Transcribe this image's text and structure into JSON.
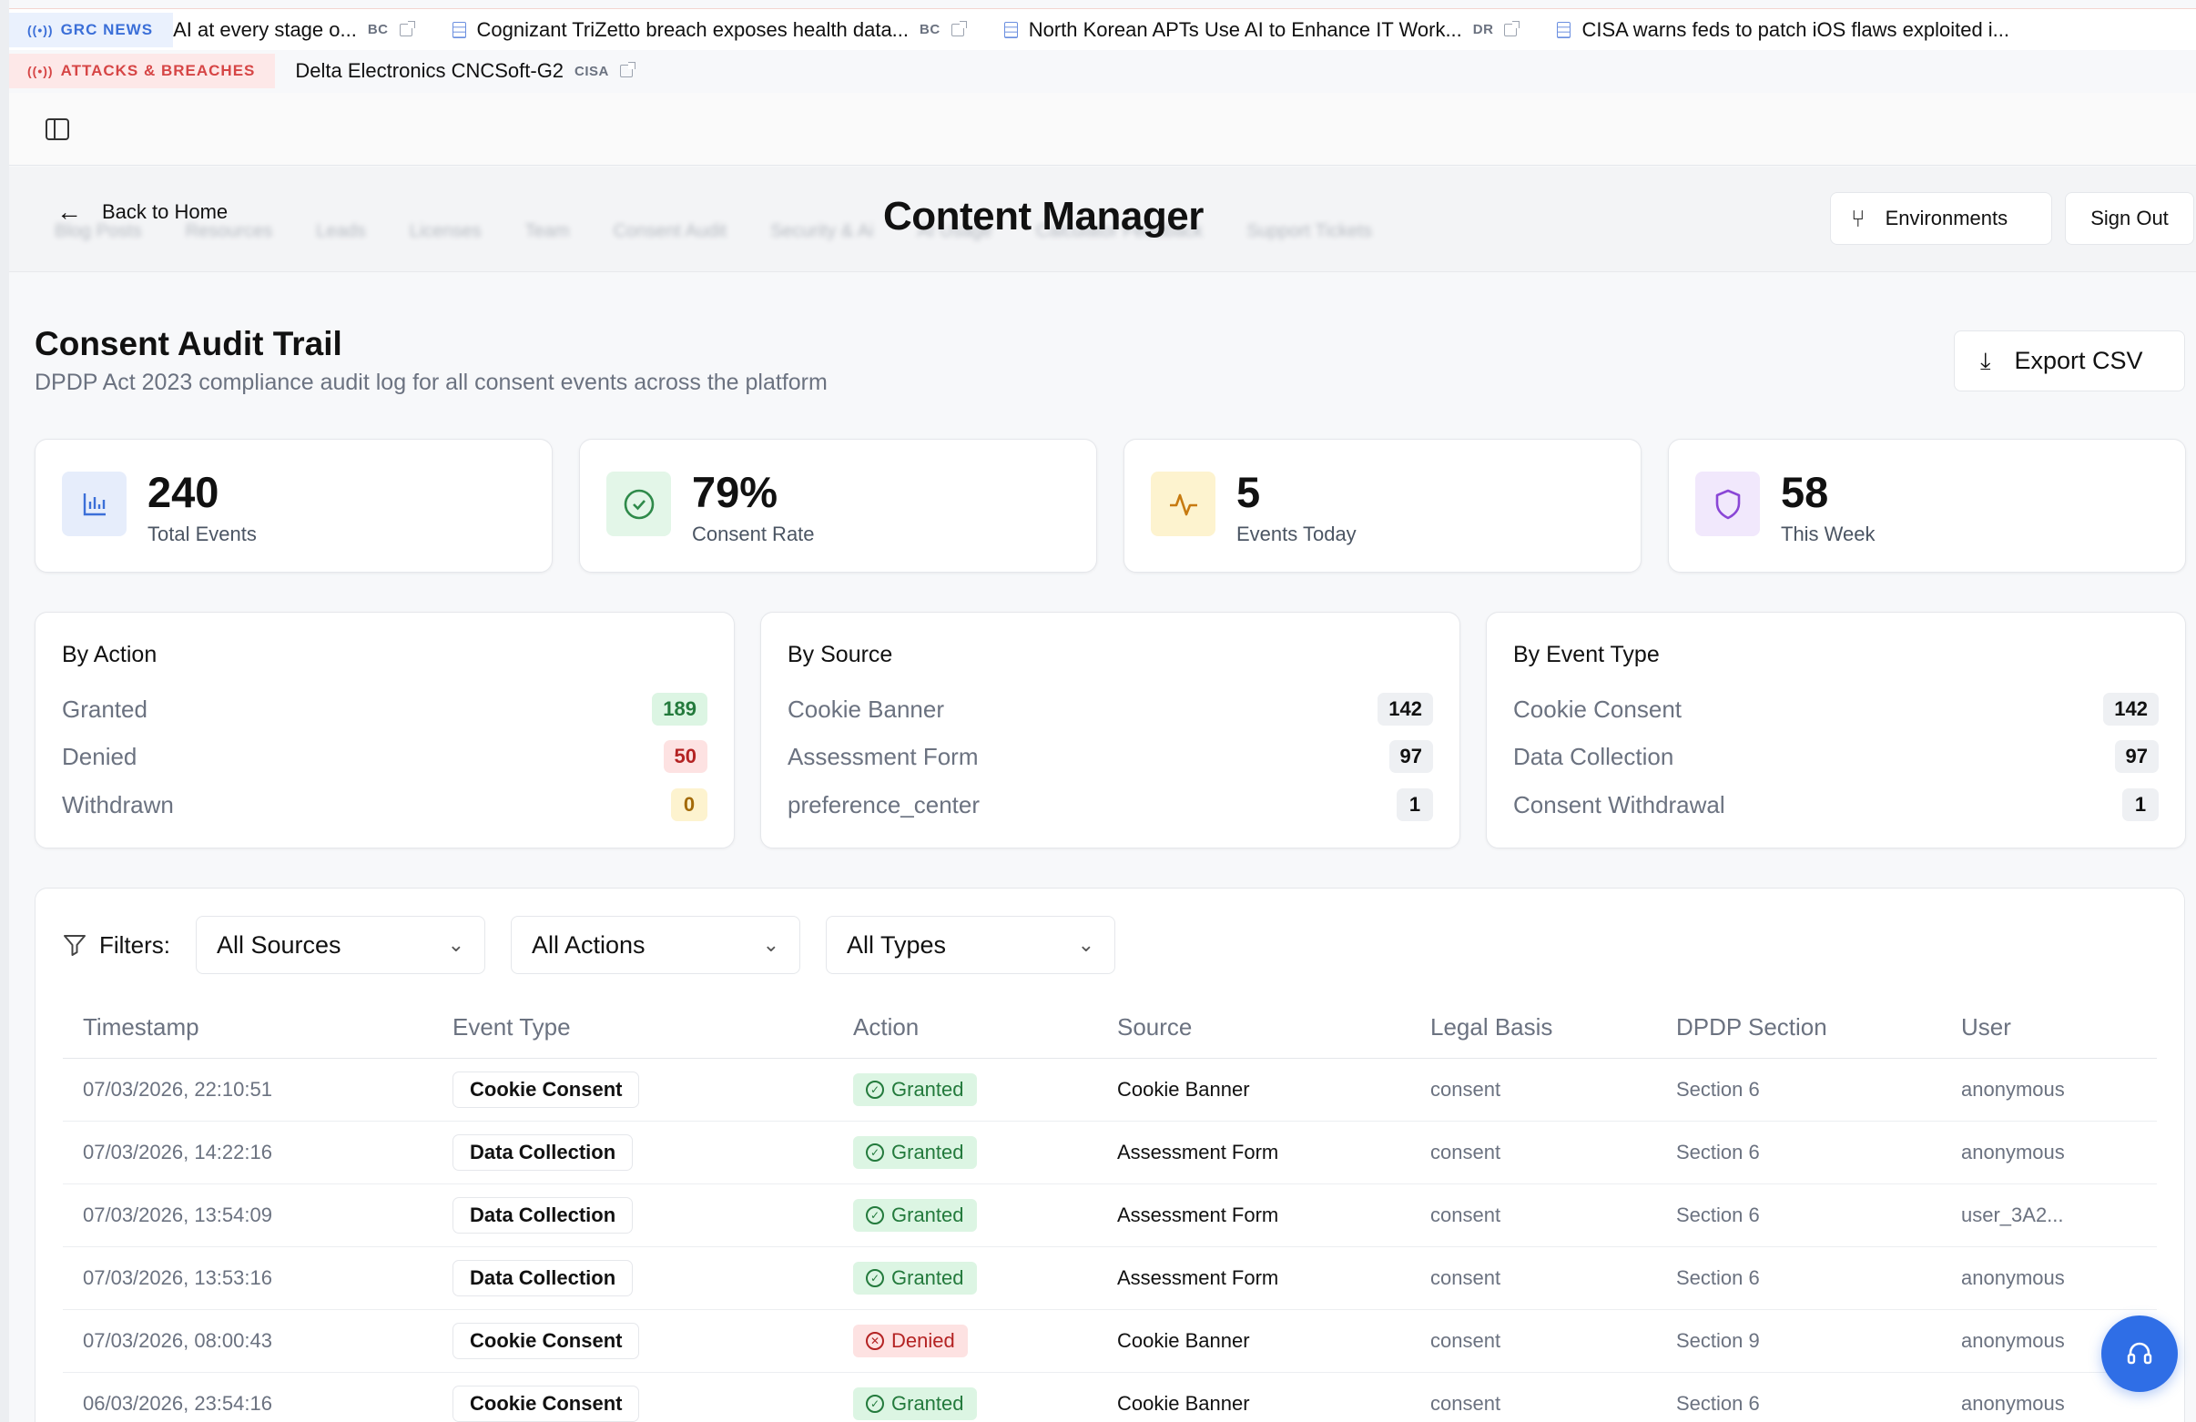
{
  "ticker": {
    "news_tag": "GRC NEWS",
    "news_items": [
      {
        "title": "AI at every stage o...",
        "source": "BC"
      },
      {
        "title": "Cognizant TriZetto breach exposes health data...",
        "source": "BC"
      },
      {
        "title": "North Korean APTs Use AI to Enhance IT Work...",
        "source": "DR"
      },
      {
        "title": "CISA warns feds to patch iOS flaws exploited i...",
        "source": ""
      }
    ],
    "attacks_tag": "ATTACKS & BREACHES",
    "attack_items": [
      {
        "title": "Delta Electronics CNCSoft-G2",
        "source": "CISA"
      }
    ]
  },
  "header": {
    "back_label": "Back to Home",
    "title": "Content Manager",
    "environments_label": "Environments",
    "signout_label": "Sign Out",
    "blurred_nav": [
      "Blog Posts",
      "Resources",
      "Leads",
      "Licenses",
      "Team",
      "Consent Audit",
      "Security & Ai",
      "AI Usage",
      "Calculator Feedback",
      "Support Tickets"
    ]
  },
  "section": {
    "title": "Consent Audit Trail",
    "subtitle": "DPDP Act 2023 compliance audit log for all consent events across the platform",
    "export_label": "Export CSV"
  },
  "stats": [
    {
      "value": "240",
      "label": "Total Events",
      "icon": "bar-chart-icon",
      "bg": "#e6edfb",
      "fg": "#3b6fd8"
    },
    {
      "value": "79%",
      "label": "Consent Rate",
      "icon": "check-circle-icon",
      "bg": "#e3f6e8",
      "fg": "#2f8a4a"
    },
    {
      "value": "5",
      "label": "Events Today",
      "icon": "activity-icon",
      "bg": "#fdf3cf",
      "fg": "#c77a10"
    },
    {
      "value": "58",
      "label": "This Week",
      "icon": "shield-icon",
      "bg": "#f1e8fc",
      "fg": "#8a46d6"
    }
  ],
  "breakdowns": [
    {
      "title": "By Action",
      "rows": [
        {
          "label": "Granted",
          "count": "189",
          "bg": "#dcf5e3",
          "fg": "#237a3c"
        },
        {
          "label": "Denied",
          "count": "50",
          "bg": "#fde2e2",
          "fg": "#b42323"
        },
        {
          "label": "Withdrawn",
          "count": "0",
          "bg": "#fdf3cf",
          "fg": "#a36a08"
        }
      ]
    },
    {
      "title": "By Source",
      "rows": [
        {
          "label": "Cookie Banner",
          "count": "142"
        },
        {
          "label": "Assessment Form",
          "count": "97"
        },
        {
          "label": "preference_center",
          "count": "1"
        }
      ]
    },
    {
      "title": "By Event Type",
      "rows": [
        {
          "label": "Cookie Consent",
          "count": "142"
        },
        {
          "label": "Data Collection",
          "count": "97"
        },
        {
          "label": "Consent Withdrawal",
          "count": "1"
        }
      ]
    }
  ],
  "filters": {
    "label": "Filters:",
    "source_selected": "All Sources",
    "action_selected": "All Actions",
    "type_selected": "All Types"
  },
  "table": {
    "columns": [
      "Timestamp",
      "Event Type",
      "Action",
      "Source",
      "Legal Basis",
      "DPDP Section",
      "User"
    ],
    "rows": [
      {
        "timestamp": "07/03/2026, 22:10:51",
        "type": "Cookie Consent",
        "action": "Granted",
        "source": "Cookie Banner",
        "basis": "consent",
        "section": "Section 6",
        "user": "anonymous"
      },
      {
        "timestamp": "07/03/2026, 14:22:16",
        "type": "Data Collection",
        "action": "Granted",
        "source": "Assessment Form",
        "basis": "consent",
        "section": "Section 6",
        "user": "anonymous"
      },
      {
        "timestamp": "07/03/2026, 13:54:09",
        "type": "Data Collection",
        "action": "Granted",
        "source": "Assessment Form",
        "basis": "consent",
        "section": "Section 6",
        "user": "user_3A2..."
      },
      {
        "timestamp": "07/03/2026, 13:53:16",
        "type": "Data Collection",
        "action": "Granted",
        "source": "Assessment Form",
        "basis": "consent",
        "section": "Section 6",
        "user": "anonymous"
      },
      {
        "timestamp": "07/03/2026, 08:00:43",
        "type": "Cookie Consent",
        "action": "Denied",
        "source": "Cookie Banner",
        "basis": "consent",
        "section": "Section 9",
        "user": "anonymous"
      },
      {
        "timestamp": "06/03/2026, 23:54:16",
        "type": "Cookie Consent",
        "action": "Granted",
        "source": "Cookie Banner",
        "basis": "consent",
        "section": "Section 6",
        "user": "anonymous"
      }
    ]
  }
}
